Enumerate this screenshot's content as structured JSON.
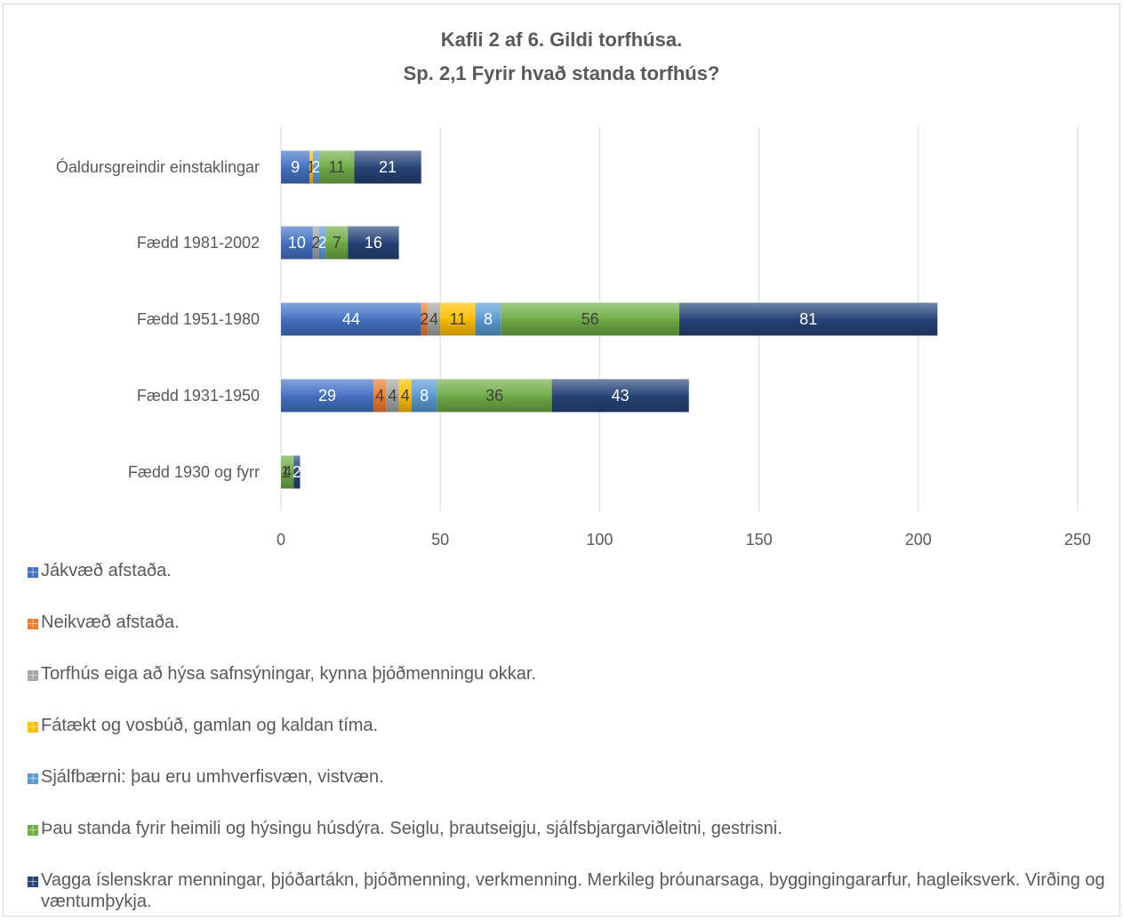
{
  "chart_data": {
    "type": "bar",
    "orientation": "horizontal",
    "stacked": true,
    "title": "Kafli 2 af 6. Gildi torfhúsa.",
    "subtitle": "Sp. 2,1 Fyrir hvað standa torfhús?",
    "categories": [
      "Óaldursgreindir einstaklingar",
      "Fædd 1981-2002",
      "Fædd 1951-1980",
      "Fædd 1931-1950",
      "Fædd 1930 og fyrr"
    ],
    "xlim": [
      0,
      250
    ],
    "xticks": [
      "0",
      "50",
      "100",
      "150",
      "200",
      "250"
    ],
    "grid": true,
    "legend_position": "bottom",
    "series": [
      {
        "name": "Jákvæð afstaða.",
        "color": "#4472c4",
        "values": [
          9,
          10,
          44,
          29,
          0
        ]
      },
      {
        "name": "Neikvæð afstaða.",
        "color": "#ed7d31",
        "values": [
          0,
          0,
          2,
          4,
          0
        ]
      },
      {
        "name": "Torfhús eiga að hýsa safnsýningar, kynna þjóðmenningu okkar.",
        "color": "#a5a5a5",
        "values": [
          0,
          2,
          4,
          4,
          0
        ]
      },
      {
        "name": "Fátækt og vosbúð, gamlan og kaldan tíma.",
        "color": "#ffc000",
        "values": [
          1,
          0,
          11,
          4,
          0
        ]
      },
      {
        "name": "Sjálfbærni: þau eru umhverfisvæn, vistvæn.",
        "color": "#5b9bd5",
        "values": [
          2,
          2,
          8,
          8,
          0
        ]
      },
      {
        "name": "Þau standa fyrir heimili og hýsingu húsdýra. Seiglu, þrautseigju, sjálfsbjargarviðleitni, gestrisni.",
        "color": "#70ad47",
        "values": [
          11,
          7,
          56,
          36,
          4
        ]
      },
      {
        "name": "Vagga íslenskrar menningar, þjóðartákn, þjóðmenning, verkmenning. Merkileg þróunarsaga, byggingingararfur, hagleiksverk. Virðing og væntumþykja.",
        "color": "#264478",
        "values": [
          21,
          16,
          81,
          43,
          2
        ]
      }
    ],
    "extra_labels": [
      {
        "category": "Fædd 1930 og fyrr",
        "text": "1"
      }
    ]
  }
}
